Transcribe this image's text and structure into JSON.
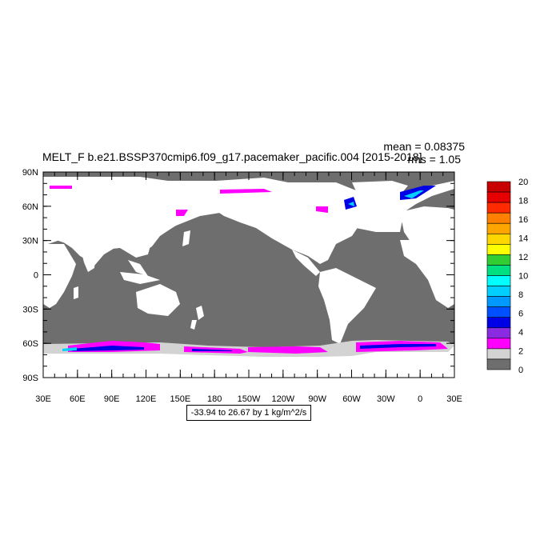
{
  "title": "MELT_F b.e21.BSSP370cmip6.f09_g17.pacemaker_pacific.004 [2015-2018]",
  "stats": {
    "mean": "mean = 0.08375",
    "rms": "rms = 1.05"
  },
  "range_label": "-33.94 to 26.67 by 1 kg/m^2/s",
  "lat_labels": [
    "90N",
    "60N",
    "30N",
    "0",
    "30S",
    "60S",
    "90S"
  ],
  "lon_labels": [
    "30E",
    "60E",
    "90E",
    "120E",
    "150E",
    "180",
    "150W",
    "120W",
    "90W",
    "60W",
    "30W",
    "0",
    "30E"
  ],
  "colorbar": {
    "labels": [
      "20",
      "18",
      "16",
      "14",
      "12",
      "10",
      "8",
      "6",
      "4",
      "2",
      "0"
    ],
    "colors": [
      "#c80000",
      "#e60000",
      "#ff2a00",
      "#ff7f00",
      "#ffa500",
      "#ffd700",
      "#ffff00",
      "#32cd32",
      "#00e080",
      "#00ffff",
      "#00cfff",
      "#0099ff",
      "#0050ff",
      "#0000e6",
      "#8a2be2",
      "#ff00ff",
      "#d3d3d3",
      "#6e6e6e"
    ]
  },
  "map_colors": {
    "ocean": "#6e6e6e",
    "land": "#ffffff",
    "ice_edge": "#d3d3d3",
    "melt_low": "#ff00ff",
    "melt_mid": "#0000e6",
    "melt_high": "#00cfff"
  }
}
